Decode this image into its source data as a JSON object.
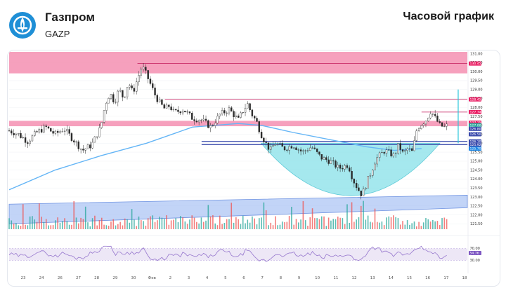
{
  "header": {
    "company": "Газпром",
    "ticker": "GAZP",
    "chart_kind": "Часовой график"
  },
  "colors": {
    "bull": "#26a69a",
    "bear": "#ef5350",
    "ma": "#64b5f6",
    "resistance_zone": "#f48fb1",
    "support_channel": "#aec6f5",
    "cup_fill": "#8fe3ea",
    "rsi_line": "#9575cd",
    "rsi_band": "#ede7f6",
    "brand_logo": "#1f8fd6"
  },
  "chart_data": {
    "type": "candlestick",
    "ticker": "GAZP",
    "timeframe": "1H",
    "y_axis": {
      "min": 121.2,
      "max": 131.1,
      "ticks": [
        131.0,
        130.5,
        130.0,
        129.5,
        129.0,
        128.5,
        128.0,
        127.5,
        127.0,
        126.5,
        126.0,
        125.5,
        125.0,
        124.5,
        124.0,
        123.5,
        123.0,
        122.5,
        122.0,
        121.5
      ]
    },
    "x_axis": {
      "labels": [
        "23",
        "24",
        "26",
        "27",
        "28",
        "29",
        "30",
        "Фев",
        "2",
        "3",
        "4",
        "5",
        "6",
        "7",
        "8",
        "9",
        "10",
        "11",
        "12",
        "13",
        "14",
        "15",
        "16",
        "17",
        "18"
      ]
    },
    "price_tags": [
      {
        "value": 130.45,
        "label": "130.45",
        "color": "#e91e63"
      },
      {
        "value": 128.45,
        "label": "128.45",
        "color": "#e91e63"
      },
      {
        "value": 127.74,
        "label": "127.74",
        "color": "#e91e63"
      },
      {
        "value": 127.15,
        "label": "127.15",
        "color": "#e91e63"
      },
      {
        "value": 127.0,
        "label": "127.00",
        "color": "#26a69a"
      },
      {
        "value": 126.8,
        "label": "126.80",
        "color": "#3949ab"
      },
      {
        "value": 126.5,
        "label": "126.50",
        "color": "#3949ab"
      },
      {
        "value": 126.1,
        "label": "126.10",
        "color": "#3949ab"
      },
      {
        "value": 125.92,
        "label": "125.92",
        "color": "#3949ab"
      },
      {
        "value": 125.7,
        "label": "125.70",
        "color": "#1e88e5"
      }
    ],
    "resistance_zones": [
      {
        "from": 129.9,
        "to": 131.1
      },
      {
        "from": 126.95,
        "to": 127.25
      }
    ],
    "levels": [
      {
        "value": 130.45,
        "from_x": 0.28
      },
      {
        "value": 128.45,
        "from_x": 0.34
      },
      {
        "value": 127.74,
        "from_x": 0.9
      }
    ],
    "support_lines": [
      {
        "value": 126.1,
        "from_x": 0.42
      },
      {
        "value": 125.92,
        "from_x": 0.42
      }
    ],
    "moving_average": {
      "x": [
        0.0,
        0.1,
        0.2,
        0.3,
        0.4,
        0.5,
        0.55,
        0.62,
        0.7,
        0.78,
        0.84,
        0.9
      ],
      "y": [
        123.4,
        124.5,
        125.3,
        126.0,
        126.9,
        127.1,
        127.0,
        126.6,
        126.2,
        125.8,
        125.6,
        125.7
      ]
    },
    "cup": {
      "x_start": 0.55,
      "x_end": 0.94,
      "top": 126.0,
      "bottom": 123.0
    },
    "support_channel": {
      "lower": {
        "x0": 0.0,
        "y0": 121.5,
        "x1": 1.0,
        "y1": 122.4
      },
      "upper": {
        "x0": 0.0,
        "y0": 122.6,
        "x1": 1.0,
        "y1": 123.1
      }
    },
    "projection_arrow": {
      "x": 0.98,
      "from": 126.0,
      "to": 129.0
    },
    "price_path": [
      [
        0.0,
        126.7
      ],
      [
        0.02,
        126.5
      ],
      [
        0.04,
        126.1
      ],
      [
        0.06,
        126.6
      ],
      [
        0.08,
        126.9
      ],
      [
        0.1,
        126.5
      ],
      [
        0.12,
        126.8
      ],
      [
        0.14,
        126.2
      ],
      [
        0.16,
        125.6
      ],
      [
        0.18,
        125.9
      ],
      [
        0.19,
        126.4
      ],
      [
        0.2,
        126.9
      ],
      [
        0.21,
        128.2
      ],
      [
        0.22,
        128.8
      ],
      [
        0.23,
        128.3
      ],
      [
        0.24,
        129.0
      ],
      [
        0.25,
        128.5
      ],
      [
        0.26,
        129.4
      ],
      [
        0.27,
        128.8
      ],
      [
        0.28,
        129.6
      ],
      [
        0.29,
        130.3
      ],
      [
        0.3,
        129.8
      ],
      [
        0.31,
        129.2
      ],
      [
        0.32,
        128.6
      ],
      [
        0.33,
        128.2
      ],
      [
        0.34,
        127.9
      ],
      [
        0.35,
        128.1
      ],
      [
        0.36,
        127.7
      ],
      [
        0.38,
        127.9
      ],
      [
        0.4,
        127.4
      ],
      [
        0.42,
        127.3
      ],
      [
        0.44,
        126.9
      ],
      [
        0.46,
        127.6
      ],
      [
        0.48,
        127.9
      ],
      [
        0.5,
        127.3
      ],
      [
        0.51,
        127.8
      ],
      [
        0.52,
        128.2
      ],
      [
        0.53,
        127.6
      ],
      [
        0.54,
        127.2
      ],
      [
        0.55,
        126.5
      ],
      [
        0.56,
        126.0
      ],
      [
        0.57,
        125.6
      ],
      [
        0.58,
        126.0
      ],
      [
        0.6,
        125.7
      ],
      [
        0.62,
        125.9
      ],
      [
        0.64,
        125.5
      ],
      [
        0.66,
        125.8
      ],
      [
        0.68,
        125.2
      ],
      [
        0.7,
        125.0
      ],
      [
        0.72,
        124.6
      ],
      [
        0.74,
        124.8
      ],
      [
        0.75,
        124.0
      ],
      [
        0.76,
        123.5
      ],
      [
        0.77,
        123.1
      ],
      [
        0.78,
        123.8
      ],
      [
        0.79,
        124.4
      ],
      [
        0.8,
        125.1
      ],
      [
        0.82,
        125.6
      ],
      [
        0.84,
        125.3
      ],
      [
        0.85,
        125.9
      ],
      [
        0.86,
        125.4
      ],
      [
        0.87,
        125.7
      ],
      [
        0.88,
        125.5
      ],
      [
        0.89,
        126.8
      ],
      [
        0.9,
        127.1
      ],
      [
        0.91,
        127.3
      ],
      [
        0.92,
        127.8
      ],
      [
        0.93,
        127.4
      ],
      [
        0.94,
        127.0
      ],
      [
        0.95,
        126.9
      ],
      [
        0.96,
        127.05
      ]
    ],
    "rsi": {
      "band": [
        30,
        70
      ],
      "level": 54.76,
      "labels": [
        "70.00",
        "54.76",
        "30.00"
      ]
    }
  }
}
